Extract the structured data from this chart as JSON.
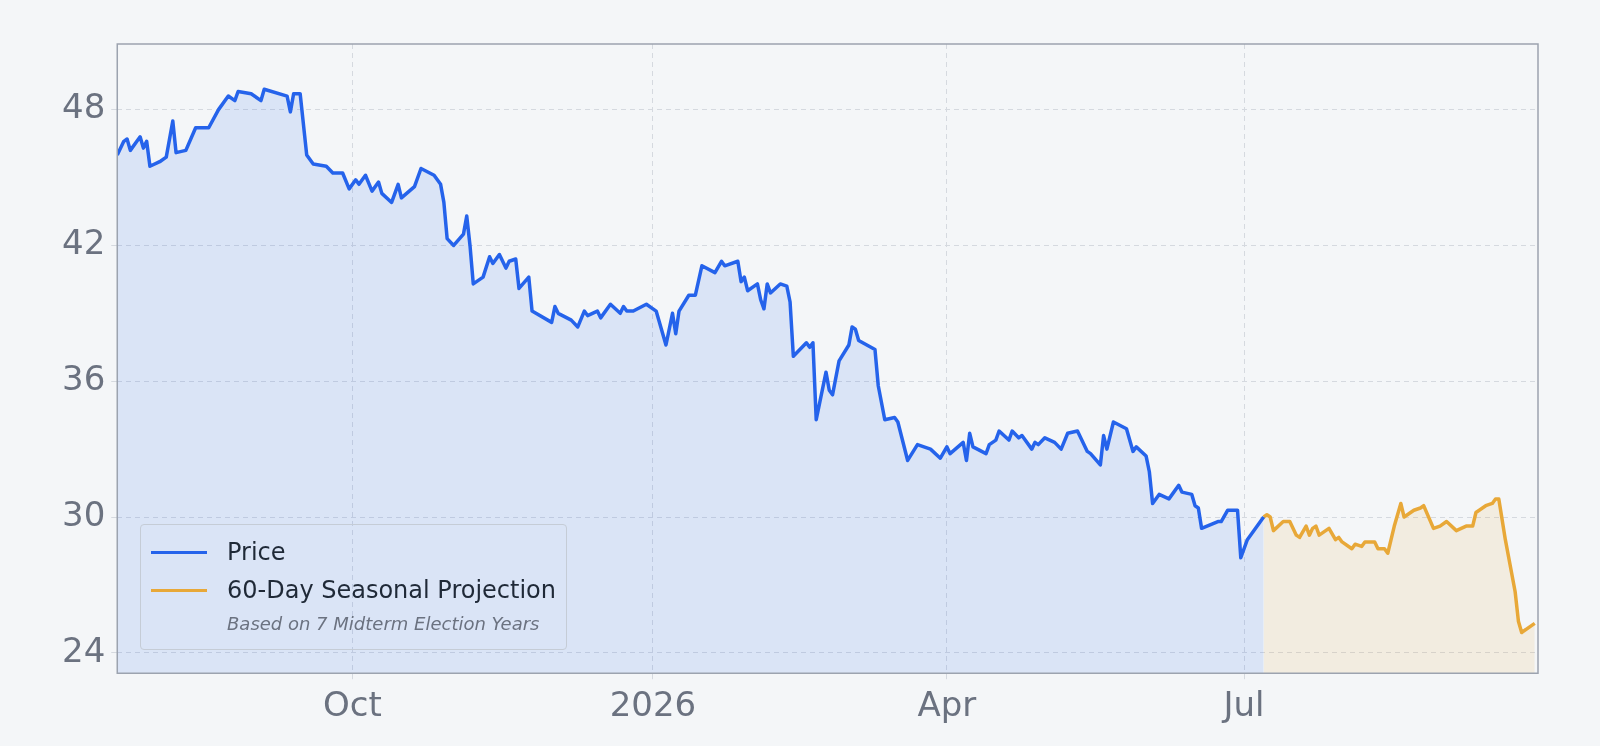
{
  "chart_data": {
    "type": "area",
    "xlim": [
      "2025-07-21",
      "2026-09-29"
    ],
    "ylim": [
      23.1,
      50.9
    ],
    "xticks": [
      {
        "value": "2025-10-01",
        "label": "Oct"
      },
      {
        "value": "2026-01-01",
        "label": "2026"
      },
      {
        "value": "2026-04-01",
        "label": "Apr"
      },
      {
        "value": "2026-07-01",
        "label": "Jul"
      }
    ],
    "yticks": [
      24,
      30,
      36,
      42,
      48
    ],
    "grid": true,
    "legend": "bottom left",
    "line_style": "solid",
    "marker": "none",
    "annotations": [
      "Based on 7 Midterm Election Years"
    ],
    "series": [
      {
        "name": "Price",
        "color": "#2563eb",
        "x": [
          "2025-07-21",
          "2025-07-23",
          "2025-07-24",
          "2025-07-25",
          "2025-07-27",
          "2025-07-28",
          "2025-07-29",
          "2025-07-30",
          "2025-07-31",
          "2025-08-03",
          "2025-08-05",
          "2025-08-07",
          "2025-08-08",
          "2025-08-11",
          "2025-08-14",
          "2025-08-18",
          "2025-08-21",
          "2025-08-24",
          "2025-08-26",
          "2025-08-27",
          "2025-08-31",
          "2025-09-03",
          "2025-09-04",
          "2025-09-11",
          "2025-09-12",
          "2025-09-13",
          "2025-09-15",
          "2025-09-17",
          "2025-09-19",
          "2025-09-23",
          "2025-09-25",
          "2025-09-28",
          "2025-09-30",
          "2025-10-02",
          "2025-10-03",
          "2025-10-05",
          "2025-10-07",
          "2025-10-09",
          "2025-10-10",
          "2025-10-13",
          "2025-10-15",
          "2025-10-16",
          "2025-10-20",
          "2025-10-22",
          "2025-10-26",
          "2025-10-28",
          "2025-10-29",
          "2025-10-30",
          "2025-11-01",
          "2025-11-04",
          "2025-11-05",
          "2025-11-06",
          "2025-11-07",
          "2025-11-10",
          "2025-11-12",
          "2025-11-13",
          "2025-11-15",
          "2025-11-17",
          "2025-11-18",
          "2025-11-20",
          "2025-11-21",
          "2025-11-24",
          "2025-11-25",
          "2025-12-01",
          "2025-12-02",
          "2025-12-03",
          "2025-12-07",
          "2025-12-09",
          "2025-12-11",
          "2025-12-12",
          "2025-12-15",
          "2025-12-16",
          "2025-12-19",
          "2025-12-22",
          "2025-12-23",
          "2025-12-24",
          "2025-12-26",
          "2025-12-30",
          "2026-01-02",
          "2026-01-05",
          "2026-01-07",
          "2026-01-08",
          "2026-01-09",
          "2026-01-12",
          "2026-01-14",
          "2026-01-16",
          "2026-01-20",
          "2026-01-22",
          "2026-01-23",
          "2026-01-27",
          "2026-01-28",
          "2026-01-29",
          "2026-01-30",
          "2026-02-02",
          "2026-02-03",
          "2026-02-04",
          "2026-02-05",
          "2026-02-06",
          "2026-02-09",
          "2026-02-11",
          "2026-02-12",
          "2026-02-13",
          "2026-02-17",
          "2026-02-18",
          "2026-02-19",
          "2026-02-20",
          "2026-02-23",
          "2026-02-24",
          "2026-02-25",
          "2026-02-27",
          "2026-03-02",
          "2026-03-03",
          "2026-03-04",
          "2026-03-05",
          "2026-03-10",
          "2026-03-11",
          "2026-03-13",
          "2026-03-16",
          "2026-03-17",
          "2026-03-20",
          "2026-03-23",
          "2026-03-25",
          "2026-03-27",
          "2026-03-30",
          "2026-04-01",
          "2026-04-02",
          "2026-04-06",
          "2026-04-07",
          "2026-04-08",
          "2026-04-09",
          "2026-04-13",
          "2026-04-14",
          "2026-04-16",
          "2026-04-17",
          "2026-04-20",
          "2026-04-21",
          "2026-04-23",
          "2026-04-24",
          "2026-04-27",
          "2026-04-28",
          "2026-04-29",
          "2026-05-01",
          "2026-05-04",
          "2026-05-06",
          "2026-05-08",
          "2026-05-11",
          "2026-05-14",
          "2026-05-15",
          "2026-05-18",
          "2026-05-19",
          "2026-05-20",
          "2026-05-22",
          "2026-05-26",
          "2026-05-28",
          "2026-05-29",
          "2026-06-01",
          "2026-06-02",
          "2026-06-03",
          "2026-06-05",
          "2026-06-08",
          "2026-06-09",
          "2026-06-11",
          "2026-06-12",
          "2026-06-15",
          "2026-06-16",
          "2026-06-17",
          "2026-06-18",
          "2026-06-23",
          "2026-06-24",
          "2026-06-26",
          "2026-06-29",
          "2026-06-30",
          "2026-07-02",
          "2026-07-07"
        ],
        "values": [
          46.0,
          46.6,
          46.7,
          46.2,
          46.6,
          46.8,
          46.3,
          46.6,
          45.5,
          45.7,
          45.9,
          47.5,
          46.1,
          46.2,
          47.2,
          47.2,
          48.0,
          48.6,
          48.4,
          48.8,
          48.7,
          48.4,
          48.9,
          48.6,
          47.9,
          48.7,
          48.7,
          46.0,
          45.6,
          45.5,
          45.2,
          45.2,
          44.5,
          44.9,
          44.7,
          45.1,
          44.4,
          44.8,
          44.3,
          43.9,
          44.7,
          44.1,
          44.6,
          45.4,
          45.1,
          44.7,
          43.9,
          42.3,
          42.0,
          42.5,
          43.3,
          42.0,
          40.3,
          40.6,
          41.5,
          41.2,
          41.6,
          41.0,
          41.3,
          41.4,
          40.1,
          40.6,
          39.1,
          38.6,
          39.3,
          39.0,
          38.7,
          38.4,
          39.1,
          38.9,
          39.1,
          38.8,
          39.4,
          39.0,
          39.3,
          39.1,
          39.1,
          39.4,
          39.1,
          37.6,
          39.0,
          38.1,
          39.1,
          39.8,
          39.8,
          41.1,
          40.8,
          41.3,
          41.1,
          41.3,
          40.4,
          40.6,
          40.0,
          40.3,
          39.6,
          39.2,
          40.3,
          39.9,
          40.3,
          40.2,
          39.5,
          37.1,
          37.7,
          37.5,
          37.7,
          34.3,
          36.4,
          35.6,
          35.4,
          36.9,
          37.6,
          38.4,
          38.3,
          37.8,
          37.4,
          35.8,
          34.3,
          34.4,
          34.2,
          32.5,
          33.2,
          33.1,
          33.0,
          32.6,
          33.1,
          32.8,
          33.3,
          32.5,
          33.7,
          33.1,
          32.8,
          33.2,
          33.4,
          33.8,
          33.4,
          33.8,
          33.5,
          33.6,
          33.0,
          33.3,
          33.2,
          33.5,
          33.3,
          33.0,
          33.7,
          33.8,
          32.9,
          32.8,
          32.3,
          33.6,
          33.0,
          34.2,
          33.9,
          32.9,
          33.1,
          32.7,
          32.0,
          30.6,
          31.0,
          30.8,
          31.0,
          31.4,
          31.1,
          31.0,
          30.5,
          30.4,
          29.5,
          29.8,
          29.8,
          30.3,
          30.3,
          28.2,
          29.0,
          30.0
        ]
      },
      {
        "name": "60-Day Seasonal Projection",
        "color": "#e8a838",
        "x": [
          "2026-07-07",
          "2026-07-08",
          "2026-07-09",
          "2026-07-10",
          "2026-07-13",
          "2026-07-15",
          "2026-07-17",
          "2026-07-18",
          "2026-07-20",
          "2026-07-21",
          "2026-07-22",
          "2026-07-23",
          "2026-07-24",
          "2026-07-27",
          "2026-07-29",
          "2026-07-30",
          "2026-07-31",
          "2026-08-03",
          "2026-08-04",
          "2026-08-06",
          "2026-08-07",
          "2026-08-10",
          "2026-08-11",
          "2026-08-13",
          "2026-08-14",
          "2026-08-16",
          "2026-08-18",
          "2026-08-19",
          "2026-08-21",
          "2026-08-22",
          "2026-08-24",
          "2026-08-25",
          "2026-08-28",
          "2026-08-30",
          "2026-09-01",
          "2026-09-04",
          "2026-09-07",
          "2026-09-09",
          "2026-09-10",
          "2026-09-13",
          "2026-09-15",
          "2026-09-16",
          "2026-09-17",
          "2026-09-19",
          "2026-09-22",
          "2026-09-23",
          "2026-09-24",
          "2026-09-27",
          "2026-09-28"
        ],
        "values": [
          30.0,
          30.1,
          30.0,
          29.4,
          29.8,
          29.8,
          29.2,
          29.1,
          29.6,
          29.2,
          29.5,
          29.6,
          29.2,
          29.5,
          29.0,
          29.1,
          28.9,
          28.6,
          28.8,
          28.7,
          28.9,
          28.9,
          28.6,
          28.6,
          28.4,
          29.6,
          30.6,
          30.0,
          30.2,
          30.3,
          30.4,
          30.5,
          29.5,
          29.6,
          29.8,
          29.4,
          29.6,
          29.6,
          30.2,
          30.5,
          30.6,
          30.8,
          30.8,
          29.0,
          26.7,
          25.4,
          24.9,
          25.2,
          25.3
        ]
      }
    ]
  }
}
